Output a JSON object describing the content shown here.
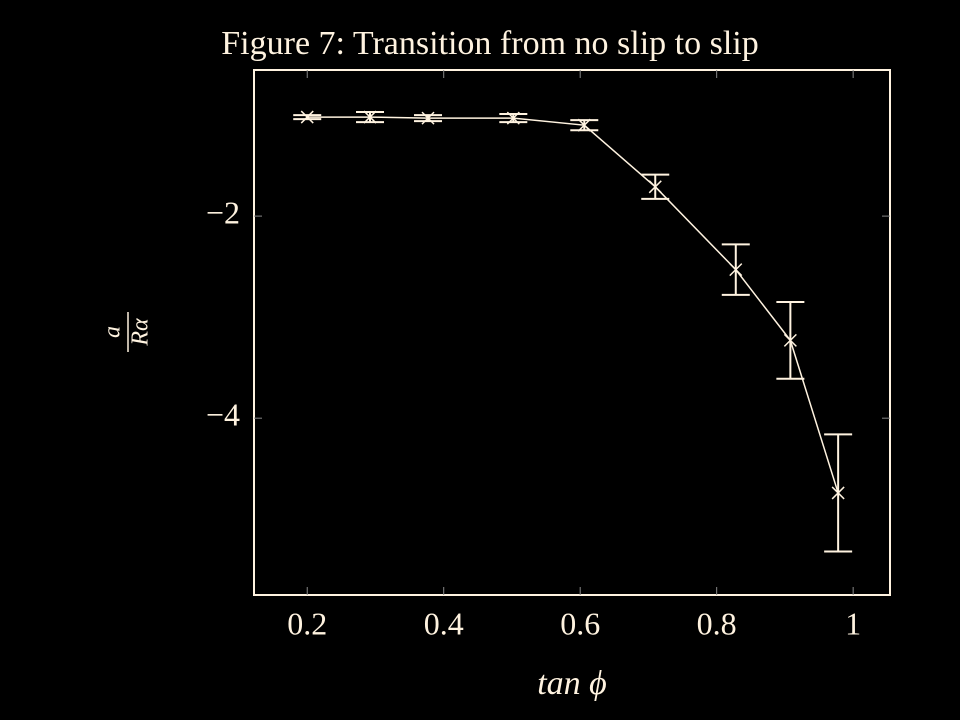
{
  "chart_data": {
    "type": "line",
    "title": "Figure 7: Transition from no slip to slip",
    "xlabel": "tan ϕ",
    "ylabel": {
      "numerator": "a",
      "denominator": "Rα"
    },
    "x": [
      0.2,
      0.292,
      0.377,
      0.502,
      0.606,
      0.71,
      0.828,
      0.908,
      0.978
    ],
    "series": [
      {
        "color": "#fff3e0",
        "values": [
          -1.02,
          -1.02,
          -1.03,
          -1.03,
          -1.1,
          -1.71,
          -2.53,
          -3.23,
          -4.74
        ],
        "errors": [
          0.02,
          0.05,
          0.03,
          0.04,
          0.05,
          0.12,
          0.25,
          0.38,
          0.58
        ]
      }
    ],
    "xlim": [
      0.122,
      1.054
    ],
    "ylim": [
      -5.75,
      -0.554
    ],
    "xticks": [
      0.2,
      0.4,
      0.6,
      0.8,
      1
    ],
    "yticks": [
      {
        "value": -2,
        "label": "−2"
      },
      {
        "value": -4,
        "label": "−4"
      }
    ],
    "grid": false
  }
}
